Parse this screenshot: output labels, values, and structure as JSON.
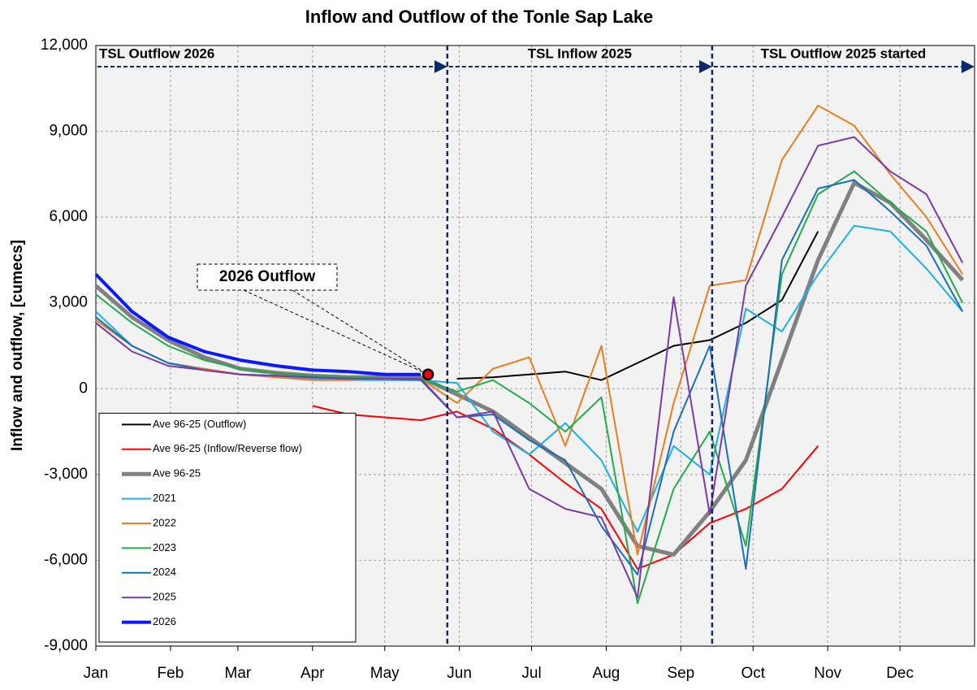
{
  "chart_data": {
    "type": "line",
    "title": "Inflow and Outflow of the Tonle Sap Lake",
    "ylabel": "Inflow and outflow, [cumecs]",
    "x": [
      0,
      15,
      30,
      45,
      60,
      75,
      90,
      105,
      120,
      135,
      150,
      165,
      180,
      195,
      210,
      225,
      240,
      255,
      270,
      285,
      300,
      315,
      330,
      345,
      360
    ],
    "xlim": [
      0,
      365
    ],
    "xticks": [
      {
        "value": 0,
        "label": "Jan"
      },
      {
        "value": 31,
        "label": "Feb"
      },
      {
        "value": 59,
        "label": "Mar"
      },
      {
        "value": 90,
        "label": "Apr"
      },
      {
        "value": 120,
        "label": "May"
      },
      {
        "value": 151,
        "label": "Jun"
      },
      {
        "value": 181,
        "label": "Jul"
      },
      {
        "value": 212,
        "label": "Aug"
      },
      {
        "value": 243,
        "label": "Sep"
      },
      {
        "value": 273,
        "label": "Oct"
      },
      {
        "value": 304,
        "label": "Nov"
      },
      {
        "value": 334,
        "label": "Dec"
      }
    ],
    "ylim": [
      -9000,
      12000
    ],
    "yticks": [
      {
        "value": -9000,
        "label": "-9,000"
      },
      {
        "value": -6000,
        "label": "-6,000"
      },
      {
        "value": -3000,
        "label": "-3,000"
      },
      0,
      {
        "value": 3000,
        "label": "3,000"
      },
      {
        "value": 6000,
        "label": "6,000"
      },
      {
        "value": 9000,
        "label": "9,000"
      },
      {
        "value": 12000,
        "label": "12,000"
      }
    ],
    "grid": true,
    "legend": "lower left",
    "series": [
      {
        "name": "Ave 96-25 (Outflow)",
        "color": "#000000",
        "width": 2,
        "values": [
          null,
          null,
          null,
          null,
          null,
          null,
          null,
          null,
          null,
          null,
          350,
          400,
          500,
          600,
          300,
          900,
          1500,
          1700,
          2300,
          3100,
          5500,
          null,
          null,
          null,
          null
        ]
      },
      {
        "name": "Ave 96-25 (Inflow/Reverse flow)",
        "color": "#ff0000",
        "width": 2,
        "values": [
          null,
          null,
          null,
          null,
          null,
          null,
          -600,
          -900,
          -1000,
          -1100,
          -800,
          -1400,
          -2300,
          -3300,
          -4200,
          -6300,
          -5800,
          -4700,
          -4200,
          -3500,
          -2000,
          null,
          null,
          null,
          null
        ]
      },
      {
        "name": "Ave 96-25",
        "color": "#808080",
        "width": 5,
        "values": [
          3600,
          2500,
          1700,
          1100,
          700,
          550,
          450,
          400,
          400,
          400,
          -200,
          -800,
          -1700,
          -2600,
          -3500,
          -5500,
          -5800,
          -4300,
          -2500,
          1000,
          4500,
          7200,
          6500,
          5200,
          3800
        ]
      },
      {
        "name": "2021",
        "color": "#1ab0e8",
        "width": 2,
        "values": [
          2700,
          1500,
          900,
          700,
          500,
          450,
          350,
          300,
          300,
          300,
          200,
          -1500,
          -2300,
          -1200,
          -2500,
          -5000,
          -2000,
          -3000,
          2800,
          2000,
          4000,
          5700,
          5500,
          4200,
          2700
        ]
      },
      {
        "name": "2022",
        "color": "#e87e1e",
        "width": 2,
        "values": [
          2400,
          1500,
          900,
          700,
          500,
          400,
          300,
          300,
          350,
          350,
          -500,
          700,
          1100,
          -2000,
          1500,
          -5800,
          -500,
          3600,
          3800,
          8000,
          9900,
          9200,
          7500,
          6000,
          4000
        ]
      },
      {
        "name": "2023",
        "color": "#22ab4a",
        "width": 2,
        "values": [
          3300,
          2300,
          1500,
          1000,
          700,
          550,
          450,
          400,
          350,
          350,
          -100,
          300,
          -500,
          -1500,
          -300,
          -7500,
          -3500,
          -1500,
          -5500,
          4000,
          6800,
          7600,
          6500,
          5500,
          3000
        ]
      },
      {
        "name": "2024",
        "color": "#1a6fb8",
        "width": 2,
        "values": [
          2500,
          1500,
          900,
          650,
          500,
          450,
          400,
          350,
          350,
          300,
          -1000,
          -900,
          -1800,
          -2500,
          -4800,
          -6500,
          -1500,
          1500,
          -6300,
          4500,
          7000,
          7300,
          6200,
          5000,
          2700
        ]
      },
      {
        "name": "2025",
        "color": "#7b3aa5",
        "width": 2,
        "values": [
          2300,
          1300,
          800,
          650,
          500,
          450,
          400,
          350,
          350,
          350,
          -1000,
          -800,
          -3500,
          -4200,
          -4500,
          -7300,
          3200,
          -4400,
          3600,
          6000,
          8500,
          8800,
          7600,
          6800,
          4400
        ]
      },
      {
        "name": "2026",
        "color": "#0a1aff",
        "width": 4,
        "values": [
          4000,
          2700,
          1800,
          1300,
          1000,
          800,
          650,
          600,
          500,
          500,
          null,
          null,
          null,
          null,
          null,
          null,
          null,
          null,
          null,
          null,
          null,
          null,
          null,
          null,
          null
        ]
      }
    ],
    "vlines": [
      146,
      256
    ],
    "annotations": [
      "TSL Outflow 2026",
      "TSL Inflow 2025",
      "TSL Outflow 2025 started"
    ],
    "callout": {
      "text": "2026 Outflow",
      "x": 138,
      "y": 500
    }
  }
}
